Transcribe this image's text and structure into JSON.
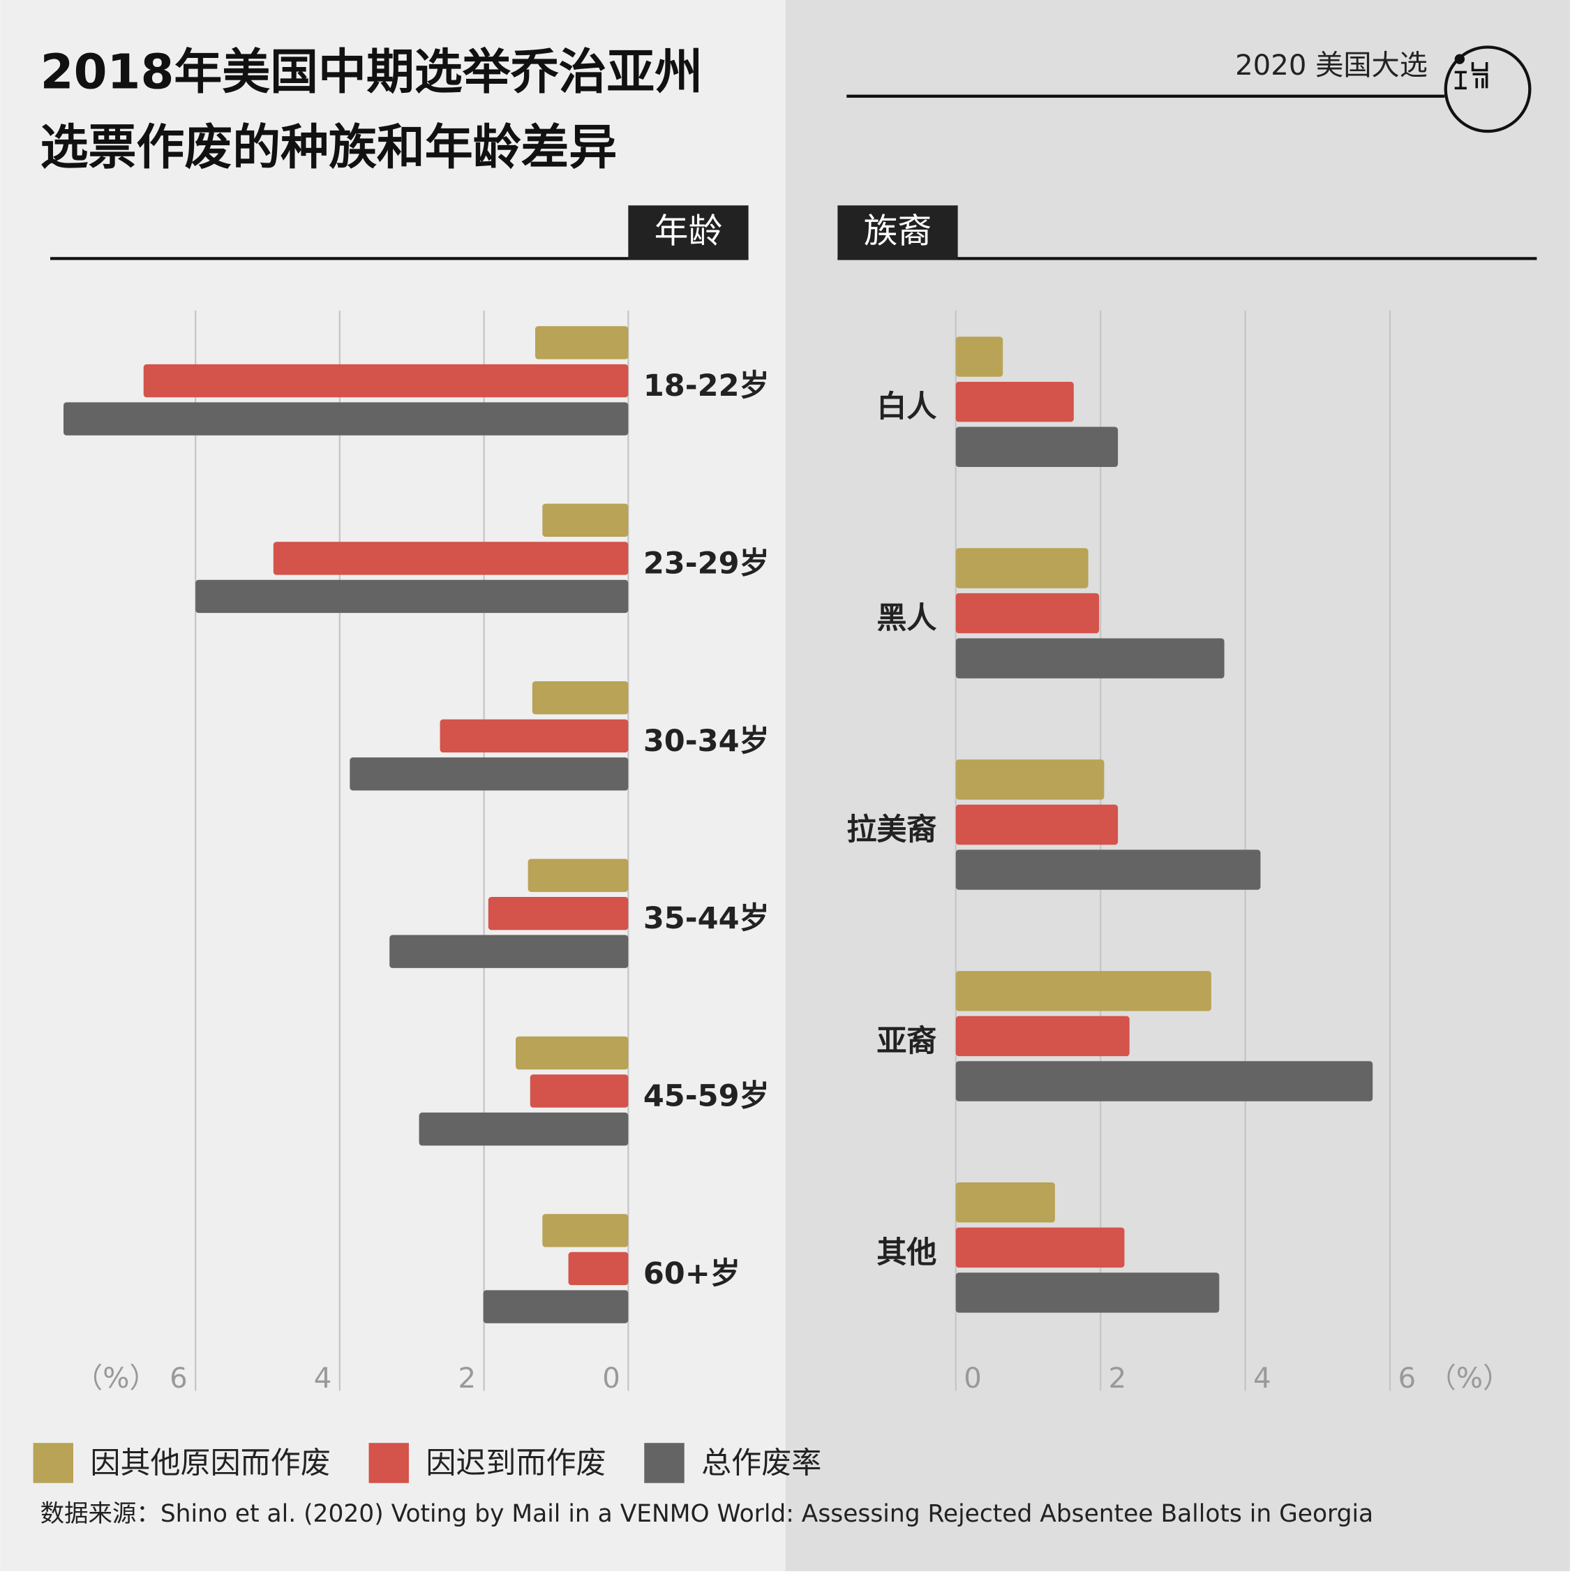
{
  "header": {
    "title_line1": "2018年美国中期选举乔治亚州",
    "title_line2": "选票作废的种族和年龄差异",
    "tag": "2020 美国大选"
  },
  "chart_data": [
    {
      "type": "bar",
      "orientation": "horizontal",
      "title": "年龄",
      "unit": "（%）",
      "xreverse": true,
      "categories": [
        "18-22岁",
        "23-29岁",
        "30-34岁",
        "35-44岁",
        "45-59岁",
        "60+岁"
      ],
      "series": [
        {
          "name": "因其他原因而作废",
          "color": "#b8a356",
          "values": [
            1.29,
            1.19,
            1.33,
            1.39,
            1.56,
            1.19
          ]
        },
        {
          "name": "因迟到而作废",
          "color": "#d4534a",
          "values": [
            6.72,
            4.92,
            2.61,
            1.94,
            1.36,
            0.83
          ]
        },
        {
          "name": "总作废率",
          "color": "#646464",
          "values": [
            7.83,
            6.0,
            3.86,
            3.31,
            2.9,
            2.01
          ]
        }
      ],
      "xlim": [
        0,
        8
      ],
      "xticks": [
        0,
        2,
        4,
        6
      ],
      "grid": true
    },
    {
      "type": "bar",
      "orientation": "horizontal",
      "title": "族裔",
      "unit": "（%）",
      "xreverse": false,
      "categories": [
        "白人",
        "黑人",
        "拉美裔",
        "亚裔",
        "其他"
      ],
      "series": [
        {
          "color": "#b8a356",
          "values": [
            0.65,
            1.83,
            2.05,
            3.53,
            1.37
          ]
        },
        {
          "color": "#d4534a",
          "values": [
            1.63,
            1.98,
            2.24,
            2.4,
            2.33
          ]
        },
        {
          "color": "#646464",
          "values": [
            2.24,
            3.71,
            4.21,
            5.76,
            3.64
          ]
        }
      ],
      "xlim": [
        0,
        8
      ],
      "xticks": [
        0,
        2,
        4,
        6
      ],
      "grid": true
    }
  ],
  "source": "数据来源：Shino et al. (2020) Voting by Mail in a VENMO World: Assessing Rejected Absentee Ballots in Georgia"
}
